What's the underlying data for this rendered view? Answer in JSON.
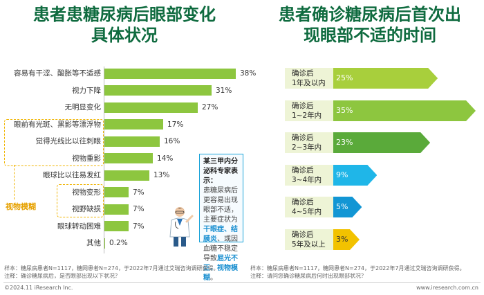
{
  "left": {
    "title_line1": "患者患糖尿病后眼部变化",
    "title_line2": "具体状况",
    "group_label": "视物模糊",
    "expert": {
      "head": "某三甲内分泌科专家表示：",
      "text_1": "患糖尿病后更容易出现眼部不适，主要症状为",
      "hl_1": "干眼症、结膜炎",
      "text_2": "、或因血糖不稳定导致",
      "hl_2": "屈光不正、视物模糊",
      "text_3": "。"
    }
  },
  "right": {
    "title_line1": "患者确诊糖尿病后首次出",
    "title_line2": "现眼部不适的时间"
  },
  "chart_data": [
    {
      "type": "bar",
      "orientation": "horizontal",
      "title": "患者患糖尿病后眼部变化具体状况",
      "categories": [
        "容易有干涩、酸胀等不适感",
        "视力下降",
        "无明显变化",
        "眼前有光斑、黑影等漂浮物",
        "觉得光线比以往刺眼",
        "视物重影",
        "眼球比以往易发红",
        "视物变形",
        "视野缺损",
        "眼球转动困难",
        "其他"
      ],
      "values": [
        38,
        31,
        27,
        17,
        16,
        14,
        13,
        7,
        7,
        7,
        0.2
      ],
      "value_labels": [
        "38%",
        "31%",
        "27%",
        "17%",
        "16%",
        "14%",
        "13%",
        "7%",
        "7%",
        "7%",
        "0.2%"
      ],
      "unit": "%",
      "color": "#8dc63f"
    },
    {
      "type": "bar",
      "orientation": "horizontal",
      "title": "患者确诊糖尿病后首次出现眼部不适的时间",
      "categories": [
        "确诊后1年及以内",
        "确诊后1~2年内",
        "确诊后2~3年内",
        "确诊后3~4年内",
        "确诊后4~5年内",
        "确诊后5年及以上"
      ],
      "category_lines": [
        [
          "确诊后",
          "1年及以内"
        ],
        [
          "确诊后",
          "1~2年内"
        ],
        [
          "确诊后",
          "2~3年内"
        ],
        [
          "确诊后",
          "3~4年内"
        ],
        [
          "确诊后",
          "4~5年内"
        ],
        [
          "确诊后",
          "5年及以上"
        ]
      ],
      "values": [
        25,
        35,
        23,
        9,
        5,
        3
      ],
      "value_labels": [
        "25%",
        "35%",
        "23%",
        "9%",
        "5%",
        "3%"
      ],
      "unit": "%",
      "colors": [
        "#a8cf3c",
        "#8dc63f",
        "#5aaa3a",
        "#1fb6e8",
        "#1296d4",
        "#f2c200"
      ]
    }
  ],
  "footnotes": {
    "left_line1": "样本：糖尿病患者N=1117，糖网患者N=274，于2022年7月通过艾瑞咨询调研获得。",
    "left_line2": "注释：确诊糖尿病后，是否眼部出现以下状况？",
    "right_line1": "样本：糖尿病患者N=1117，糖网患者N=274，于2022年7月通过艾瑞咨询调研获得。",
    "right_line2": "注释：请问您确诊糖尿病后何时出现眼部状况？",
    "copyright": "©2024.11 iResearch Inc.",
    "website": "www.iresearch.com.cn"
  }
}
